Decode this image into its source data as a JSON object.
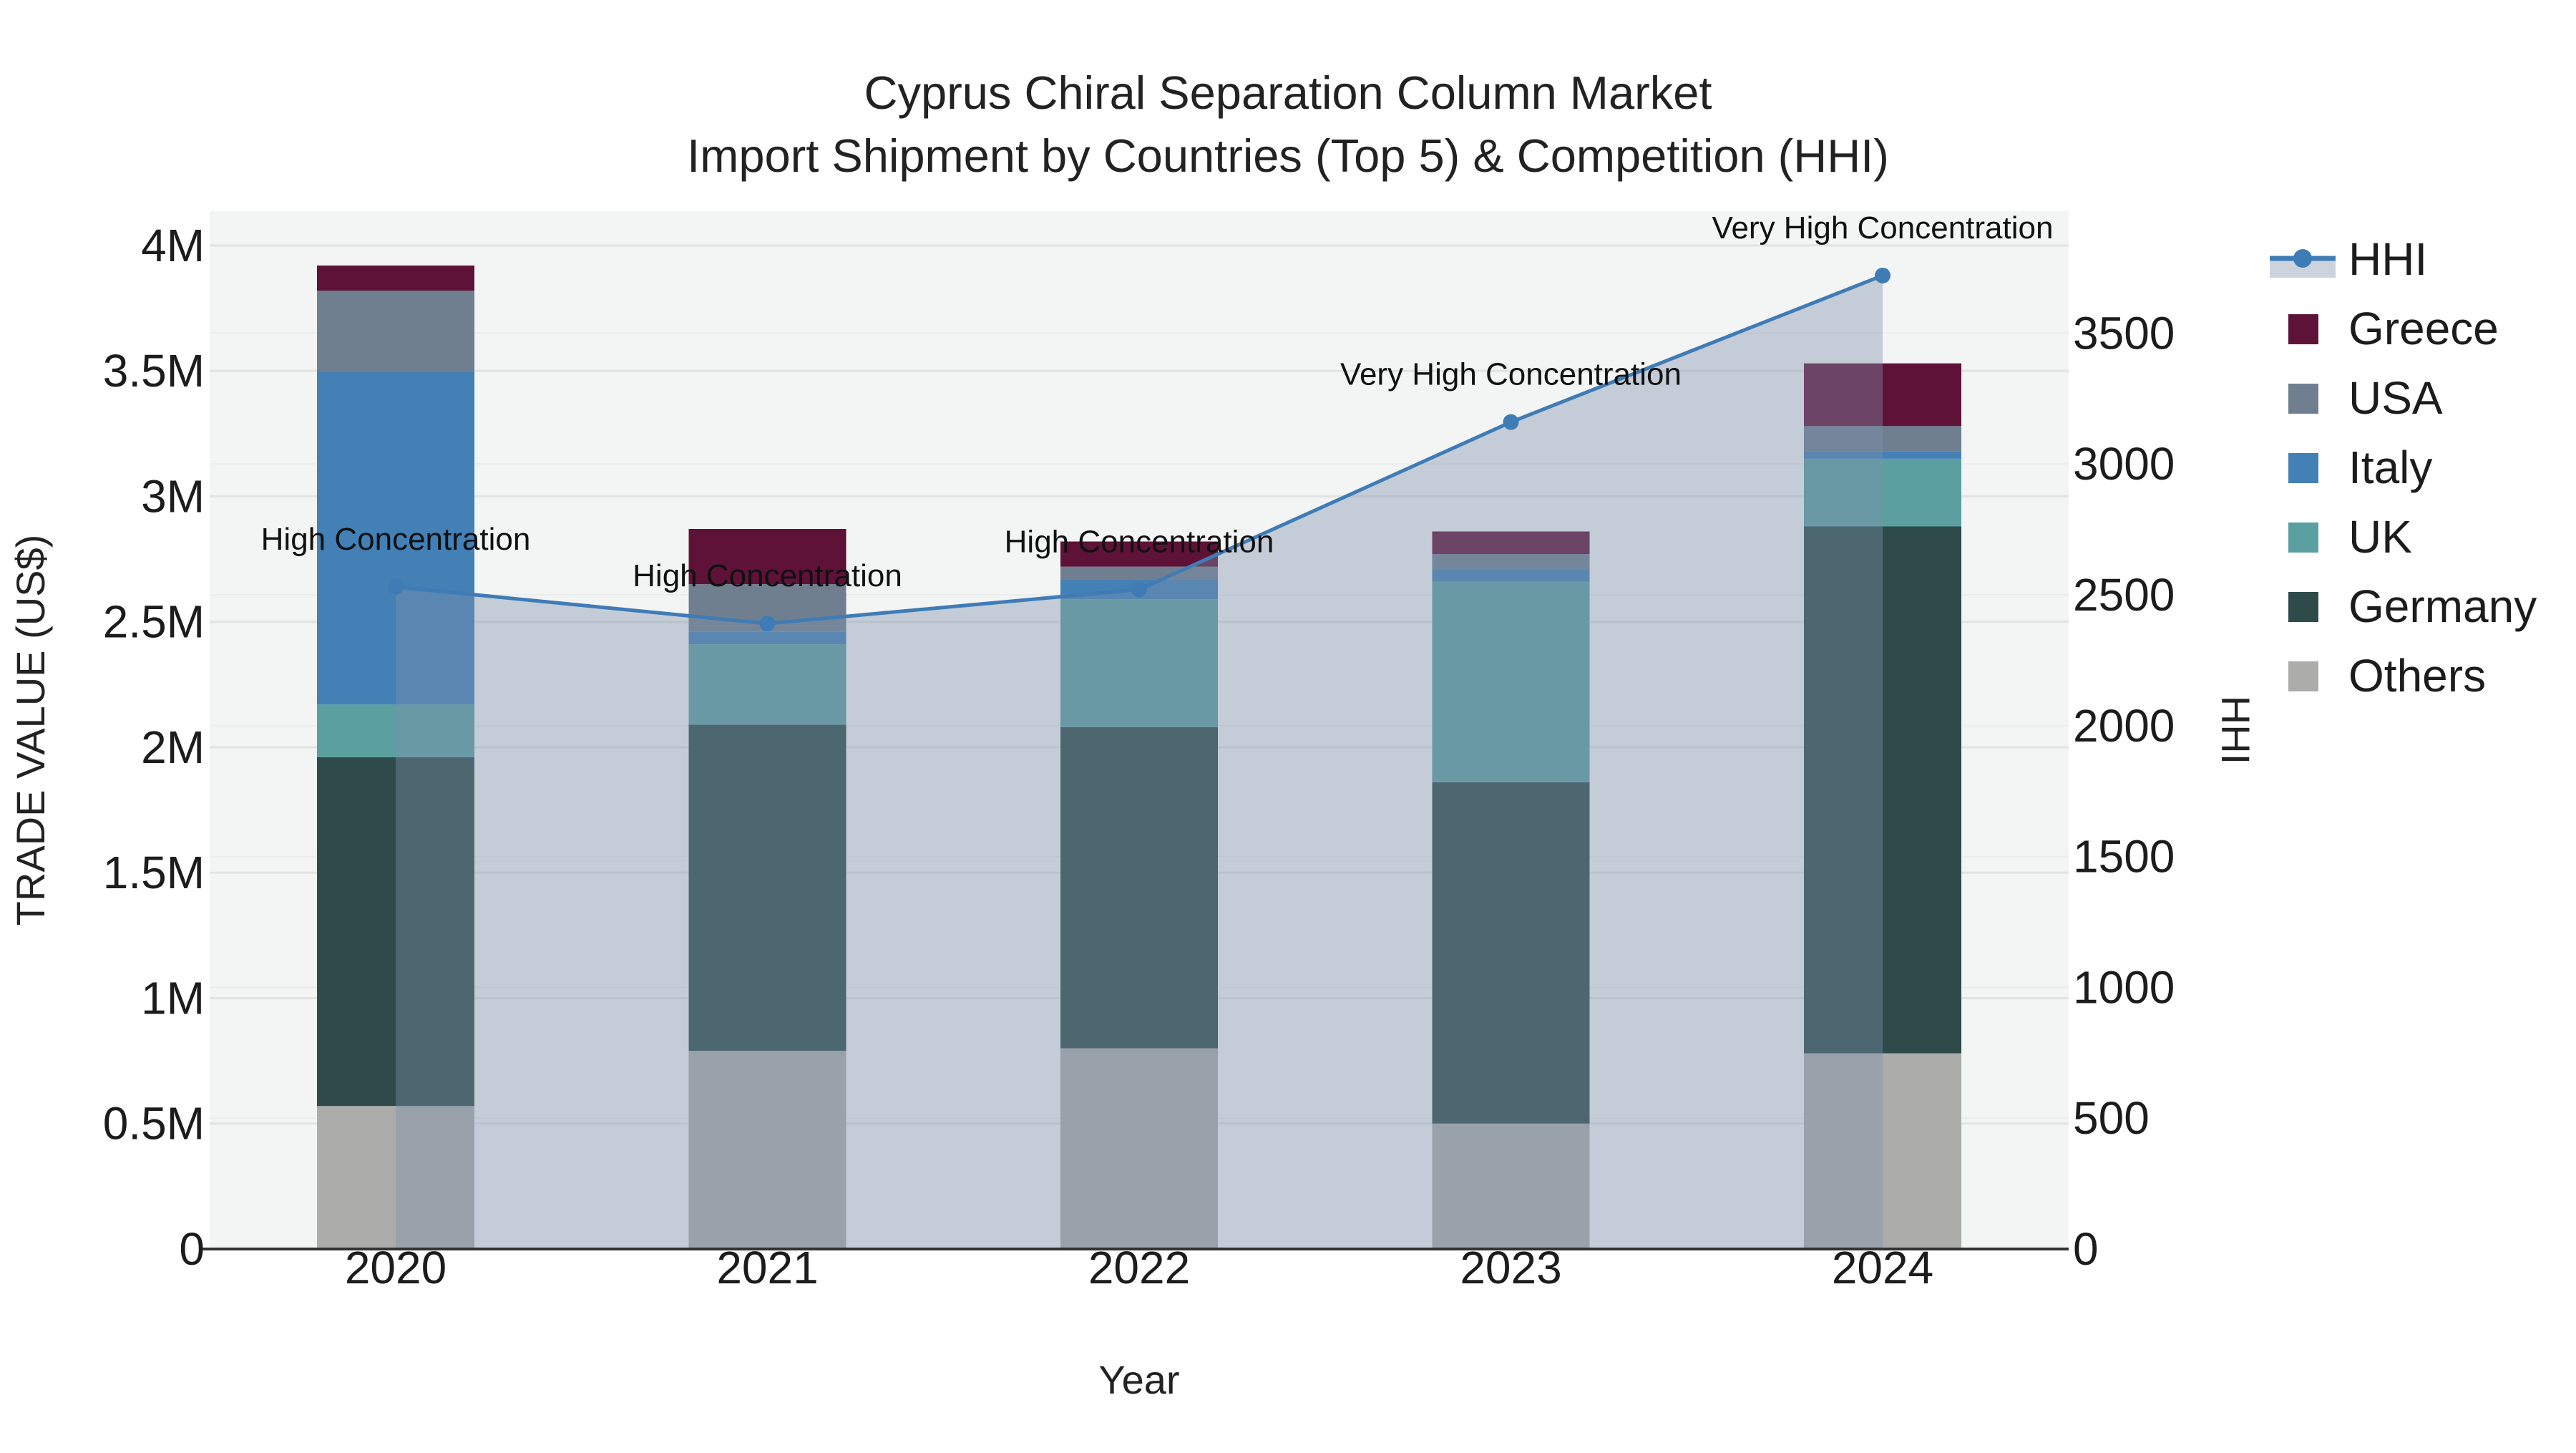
{
  "title": {
    "line1": "Cyprus Chiral Separation Column Market",
    "line2": "Import Shipment by Countries (Top 5) & Competition (HHI)"
  },
  "axes": {
    "x": {
      "title": "Year",
      "tick_labels": [
        "2020",
        "2021",
        "2022",
        "2023",
        "2024"
      ]
    },
    "y_left": {
      "title": "TRADE VALUE (US$)",
      "tick_labels": [
        "0",
        "0.5M",
        "1M",
        "1.5M",
        "2M",
        "2.5M",
        "3M",
        "3.5M",
        "4M"
      ],
      "tick_values": [
        0,
        500000,
        1000000,
        1500000,
        2000000,
        2500000,
        3000000,
        3500000,
        4000000
      ]
    },
    "y_right": {
      "title": "HHI",
      "tick_labels": [
        "0",
        "500",
        "1000",
        "1500",
        "2000",
        "2500",
        "3000",
        "3500"
      ],
      "tick_values": [
        0,
        500,
        1000,
        1500,
        2000,
        2500,
        3000,
        3500
      ]
    }
  },
  "legend": {
    "items": [
      {
        "label": "HHI",
        "type": "line",
        "color": "#3F7CB6",
        "area_color": "#CDD3DD"
      },
      {
        "label": "Greece",
        "type": "square",
        "color": "#5F1238"
      },
      {
        "label": "USA",
        "type": "square",
        "color": "#707F90"
      },
      {
        "label": "Italy",
        "type": "square",
        "color": "#4280B6"
      },
      {
        "label": "UK",
        "type": "square",
        "color": "#5C9FA0"
      },
      {
        "label": "Germany",
        "type": "square",
        "color": "#2E4B4A"
      },
      {
        "label": "Others",
        "type": "square",
        "color": "#ACACAB"
      }
    ]
  },
  "chart_data": {
    "type": "combo: stacked-bar (trade value) + line-with-area (HHI, right axis)",
    "categories": [
      "2020",
      "2021",
      "2022",
      "2023",
      "2024"
    ],
    "bar_value_unit": "US$",
    "series": [
      {
        "name": "Others",
        "color": "#ACACAB",
        "values": [
          570000,
          790000,
          800000,
          500000,
          780000
        ]
      },
      {
        "name": "Germany",
        "color": "#2E4B4A",
        "values": [
          1390000,
          1300000,
          1280000,
          1360000,
          2100000
        ]
      },
      {
        "name": "UK",
        "color": "#5C9FA0",
        "values": [
          210000,
          320000,
          510000,
          800000,
          270000
        ]
      },
      {
        "name": "Italy",
        "color": "#4280B6",
        "values": [
          1330000,
          50000,
          80000,
          50000,
          30000
        ]
      },
      {
        "name": "USA",
        "color": "#707F90",
        "values": [
          320000,
          190000,
          50000,
          60000,
          100000
        ]
      },
      {
        "name": "Greece",
        "color": "#5F1238",
        "values": [
          100000,
          220000,
          100000,
          90000,
          250000
        ]
      }
    ],
    "stacked_totals": [
      3920000,
      2870000,
      2820000,
      2860000,
      3530000
    ],
    "hhi": {
      "name": "HHI",
      "line_color": "#3F7CB6",
      "area_fill": "rgba(125,144,172,0.40)",
      "values": [
        2530,
        2390,
        2520,
        3160,
        3720
      ],
      "annotations": [
        "High Concentration",
        "High Concentration",
        "High Concentration",
        "Very High Concentration",
        "Very High Concentration"
      ]
    },
    "xlabel": "Year",
    "ylabel_left": "TRADE VALUE (US$)",
    "ylabel_right": "HHI",
    "y_left_range": [
      0,
      4136700
    ],
    "y_right_range": [
      0,
      3966
    ],
    "grid": true,
    "legend_position": "right",
    "plot_bg": "#F3F4F4",
    "grid_color_left": "#E2E3E3",
    "grid_color_right": "#EBECEC",
    "axis_line_color": "#333333"
  }
}
